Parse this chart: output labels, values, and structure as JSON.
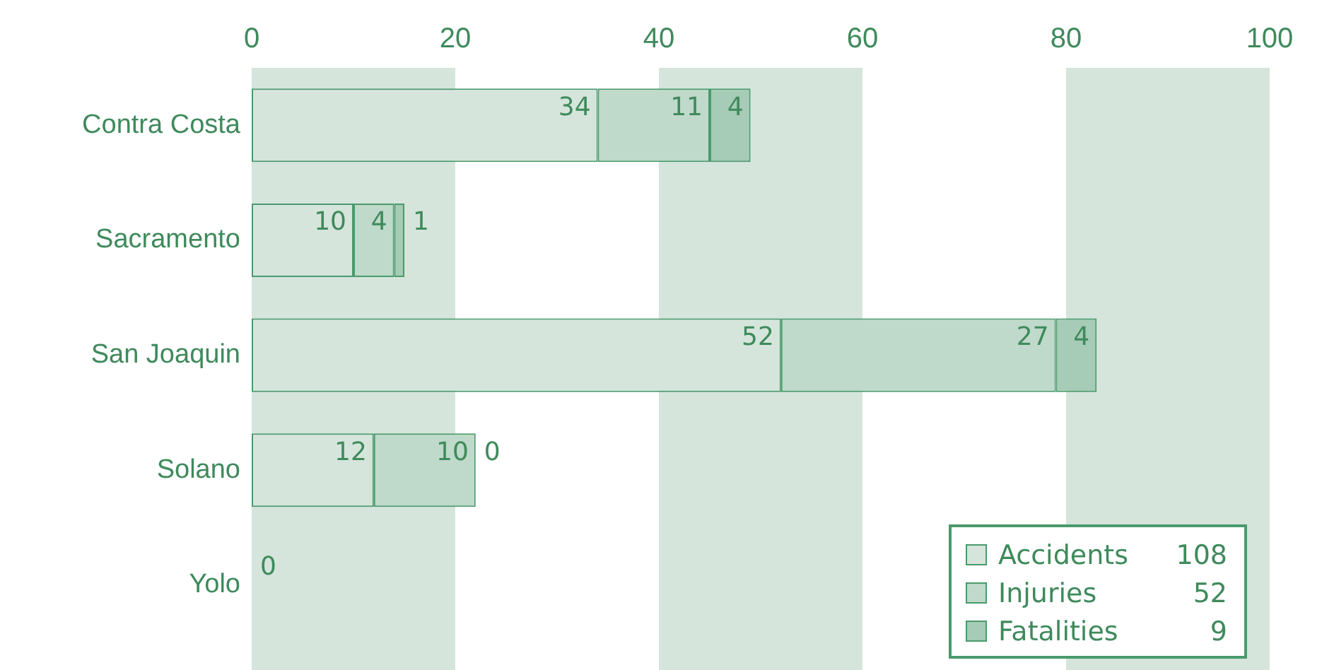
{
  "chart_data": {
    "type": "bar",
    "orientation": "horizontal",
    "stacked": true,
    "categories": [
      "Contra Costa",
      "Sacramento",
      "San Joaquin",
      "Solano",
      "Yolo"
    ],
    "series": [
      {
        "name": "Accidents",
        "color": "#d5e5dc",
        "values": [
          34,
          10,
          52,
          12,
          0
        ],
        "value_labels": [
          "34",
          "10",
          "52",
          "12",
          null
        ]
      },
      {
        "name": "Injuries",
        "color": "#bfd9ca",
        "values": [
          11,
          4,
          27,
          10,
          0
        ],
        "value_labels": [
          "11",
          "4",
          "27",
          "10",
          null
        ]
      },
      {
        "name": "Fatalities",
        "color": "#a6cbb6",
        "values": [
          4,
          1,
          4,
          0,
          0
        ],
        "value_labels": [
          "4",
          "1",
          "4",
          "0",
          "0"
        ]
      }
    ],
    "xlim": [
      0,
      100
    ],
    "xticks": [
      0,
      20,
      40,
      60,
      80,
      100
    ],
    "legend": "bottom right",
    "annotations": [
      "108",
      "52",
      "9"
    ]
  }
}
